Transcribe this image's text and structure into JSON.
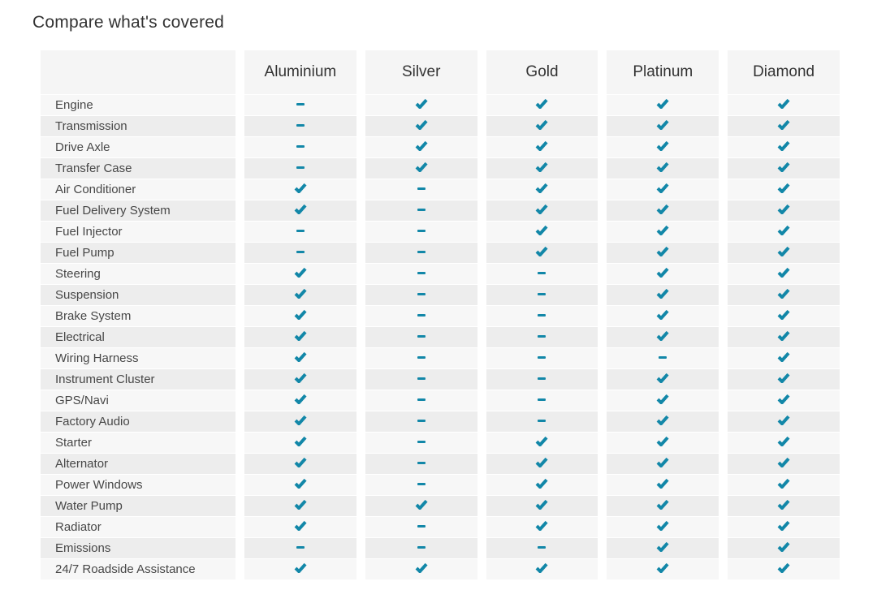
{
  "page": {
    "title": "Compare what's covered"
  },
  "colors": {
    "accent": "#1287a8",
    "row_light": "#f7f7f7",
    "row_dark": "#ededed",
    "header_bg": "#f5f5f5"
  },
  "table": {
    "plans": [
      "Aluminium",
      "Silver",
      "Gold",
      "Platinum",
      "Diamond"
    ],
    "covered_icon": "check-icon",
    "not_covered_icon": "dash-icon",
    "rows": [
      {
        "label": "Engine",
        "covered": [
          false,
          true,
          true,
          true,
          true
        ]
      },
      {
        "label": "Transmission",
        "covered": [
          false,
          true,
          true,
          true,
          true
        ]
      },
      {
        "label": "Drive Axle",
        "covered": [
          false,
          true,
          true,
          true,
          true
        ]
      },
      {
        "label": "Transfer Case",
        "covered": [
          false,
          true,
          true,
          true,
          true
        ]
      },
      {
        "label": "Air Conditioner",
        "covered": [
          true,
          false,
          true,
          true,
          true
        ]
      },
      {
        "label": "Fuel Delivery System",
        "covered": [
          true,
          false,
          true,
          true,
          true
        ]
      },
      {
        "label": "Fuel Injector",
        "covered": [
          false,
          false,
          true,
          true,
          true
        ]
      },
      {
        "label": "Fuel Pump",
        "covered": [
          false,
          false,
          true,
          true,
          true
        ]
      },
      {
        "label": "Steering",
        "covered": [
          true,
          false,
          false,
          true,
          true
        ]
      },
      {
        "label": "Suspension",
        "covered": [
          true,
          false,
          false,
          true,
          true
        ]
      },
      {
        "label": "Brake System",
        "covered": [
          true,
          false,
          false,
          true,
          true
        ]
      },
      {
        "label": "Electrical",
        "covered": [
          true,
          false,
          false,
          true,
          true
        ]
      },
      {
        "label": "Wiring Harness",
        "covered": [
          true,
          false,
          false,
          false,
          true
        ]
      },
      {
        "label": "Instrument Cluster",
        "covered": [
          true,
          false,
          false,
          true,
          true
        ]
      },
      {
        "label": "GPS/Navi",
        "covered": [
          true,
          false,
          false,
          true,
          true
        ]
      },
      {
        "label": "Factory Audio",
        "covered": [
          true,
          false,
          false,
          true,
          true
        ]
      },
      {
        "label": "Starter",
        "covered": [
          true,
          false,
          true,
          true,
          true
        ]
      },
      {
        "label": "Alternator",
        "covered": [
          true,
          false,
          true,
          true,
          true
        ]
      },
      {
        "label": "Power Windows",
        "covered": [
          true,
          false,
          true,
          true,
          true
        ]
      },
      {
        "label": "Water Pump",
        "covered": [
          true,
          true,
          true,
          true,
          true
        ]
      },
      {
        "label": "Radiator",
        "covered": [
          true,
          false,
          true,
          true,
          true
        ]
      },
      {
        "label": "Emissions",
        "covered": [
          false,
          false,
          false,
          true,
          true
        ]
      },
      {
        "label": "24/7 Roadside Assistance",
        "covered": [
          true,
          true,
          true,
          true,
          true
        ]
      }
    ]
  }
}
